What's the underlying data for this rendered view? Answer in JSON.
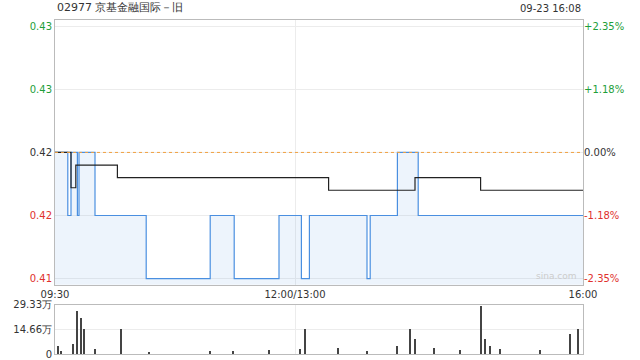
{
  "chart_data": [
    {
      "type": "line",
      "title": "02977 京基金融国际－旧",
      "subtitle": "09-23 16:08",
      "annotation": "sina.com",
      "grid": true,
      "reference_line": 0.425,
      "xlim": [
        0,
        330
      ],
      "xticks": [
        {
          "value": 0,
          "label": "09:30"
        },
        {
          "value": 150,
          "label": "12:00/13:00"
        },
        {
          "value": 330,
          "label": "16:00"
        }
      ],
      "ylim": [
        0.4145,
        0.4355
      ],
      "yticks": [
        {
          "value": 0.435,
          "label": "0.43"
        },
        {
          "value": 0.43,
          "label": "0.43"
        },
        {
          "value": 0.425,
          "label": "0.42"
        },
        {
          "value": 0.42,
          "label": "0.42"
        },
        {
          "value": 0.415,
          "label": "0.41"
        }
      ],
      "y2lim": [
        -2.47,
        2.47
      ],
      "y2ticks": [
        {
          "value": 2.35,
          "label": "+2.35%"
        },
        {
          "value": 1.18,
          "label": "+1.18%"
        },
        {
          "value": 0,
          "label": "0.00%"
        },
        {
          "value": -1.18,
          "label": "-1.18%"
        },
        {
          "value": -2.35,
          "label": "-2.35%"
        }
      ],
      "series": [
        {
          "type": "area",
          "color": "#4a8fe0",
          "line_style": "step",
          "x": [
            0,
            8,
            10,
            14,
            15,
            25,
            57,
            97,
            112,
            140,
            154,
            159,
            195,
            197,
            214,
            227,
            330
          ],
          "values": [
            0.425,
            0.42,
            0.425,
            0.42,
            0.425,
            0.42,
            0.415,
            0.42,
            0.415,
            0.42,
            0.415,
            0.42,
            0.415,
            0.42,
            0.425,
            0.42,
            0.42
          ]
        },
        {
          "type": "line",
          "color": "#222222",
          "line_style": "step",
          "x": [
            0,
            10,
            13,
            39,
            171,
            225,
            266,
            330
          ],
          "values": [
            0.425,
            0.4222,
            0.424,
            0.423,
            0.422,
            0.423,
            0.422,
            0.422
          ]
        }
      ]
    },
    {
      "type": "bar",
      "color": "#444444",
      "tick_labels": "y",
      "grid": true,
      "xlim": [
        0,
        330
      ],
      "ylim": [
        0,
        293300
      ],
      "yticks": [
        0,
        {
          "value": 146600,
          "label": "14.66万"
        },
        {
          "value": 293300,
          "label": "29.33万"
        }
      ],
      "x": [
        2,
        4,
        11,
        14,
        16,
        18,
        25,
        41,
        59,
        97,
        111,
        134,
        153,
        156,
        177,
        195,
        214,
        222,
        225,
        237,
        253,
        266,
        269,
        272,
        278,
        303,
        322,
        327
      ],
      "values": [
        50000,
        18000,
        60000,
        256000,
        214000,
        150000,
        30000,
        150000,
        12000,
        18000,
        18000,
        24000,
        30000,
        150000,
        36000,
        18000,
        50000,
        150000,
        90000,
        36000,
        24000,
        290000,
        90000,
        50000,
        30000,
        24000,
        122000,
        150000
      ]
    }
  ]
}
